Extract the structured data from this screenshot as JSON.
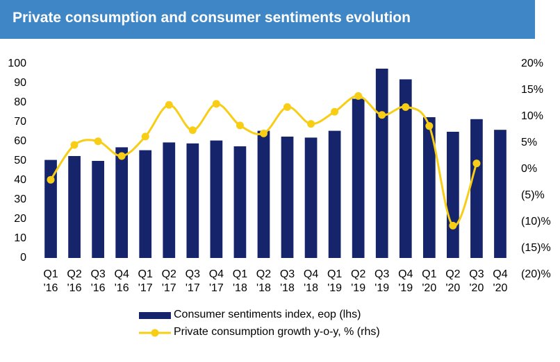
{
  "chart_data": {
    "type": "bar-line",
    "title": "Private consumption and consumer sentiments evolution",
    "categories": [
      "Q1 '16",
      "Q2 '16",
      "Q3 '16",
      "Q4 '16",
      "Q1 '17",
      "Q2 '17",
      "Q3 '17",
      "Q4 '17",
      "Q1 '18",
      "Q2 '18",
      "Q3 '18",
      "Q4 '18",
      "Q1 '19",
      "Q2 '19",
      "Q3 '19",
      "Q4 '19",
      "Q1 '20",
      "Q2 '20",
      "Q3 '20",
      "Q4 '20"
    ],
    "series": [
      {
        "name": "Consumer sentiments index, eop (lhs)",
        "type": "bar",
        "color": "#15246b",
        "values": [
          50.5,
          52.5,
          50,
          57,
          55.5,
          59.5,
          59,
          60.5,
          57.5,
          65.5,
          62.5,
          62,
          65.5,
          82,
          97.5,
          92,
          72.5,
          65,
          71.5,
          66
        ]
      },
      {
        "name": "Private consumption growth y-o-y, % (rhs)",
        "type": "line",
        "axis": "y2",
        "color": "#f7cd16",
        "values": [
          -2,
          4.6,
          5.3,
          2.5,
          6.2,
          12.2,
          7.4,
          12.4,
          8.3,
          6.8,
          11.8,
          8.6,
          10.9,
          13.9,
          10.3,
          11.8,
          8.2,
          -10.7,
          1.1,
          null
        ]
      }
    ],
    "ylim": [
      0,
      100
    ],
    "yticks": [
      0,
      10,
      20,
      30,
      40,
      50,
      60,
      70,
      80,
      90,
      100
    ],
    "y2lim": [
      -20,
      20
    ],
    "y2ticks": [
      {
        "value": 20,
        "label": "20%"
      },
      {
        "value": 15,
        "label": "15%"
      },
      {
        "value": 10,
        "label": "10%"
      },
      {
        "value": 5,
        "label": "5%"
      },
      {
        "value": 0,
        "label": "0%"
      },
      {
        "value": -5,
        "label": "(5)%"
      },
      {
        "value": -10,
        "label": "(10)%"
      },
      {
        "value": -15,
        "label": "(15)%"
      },
      {
        "value": -20,
        "label": "(20)%"
      }
    ]
  }
}
